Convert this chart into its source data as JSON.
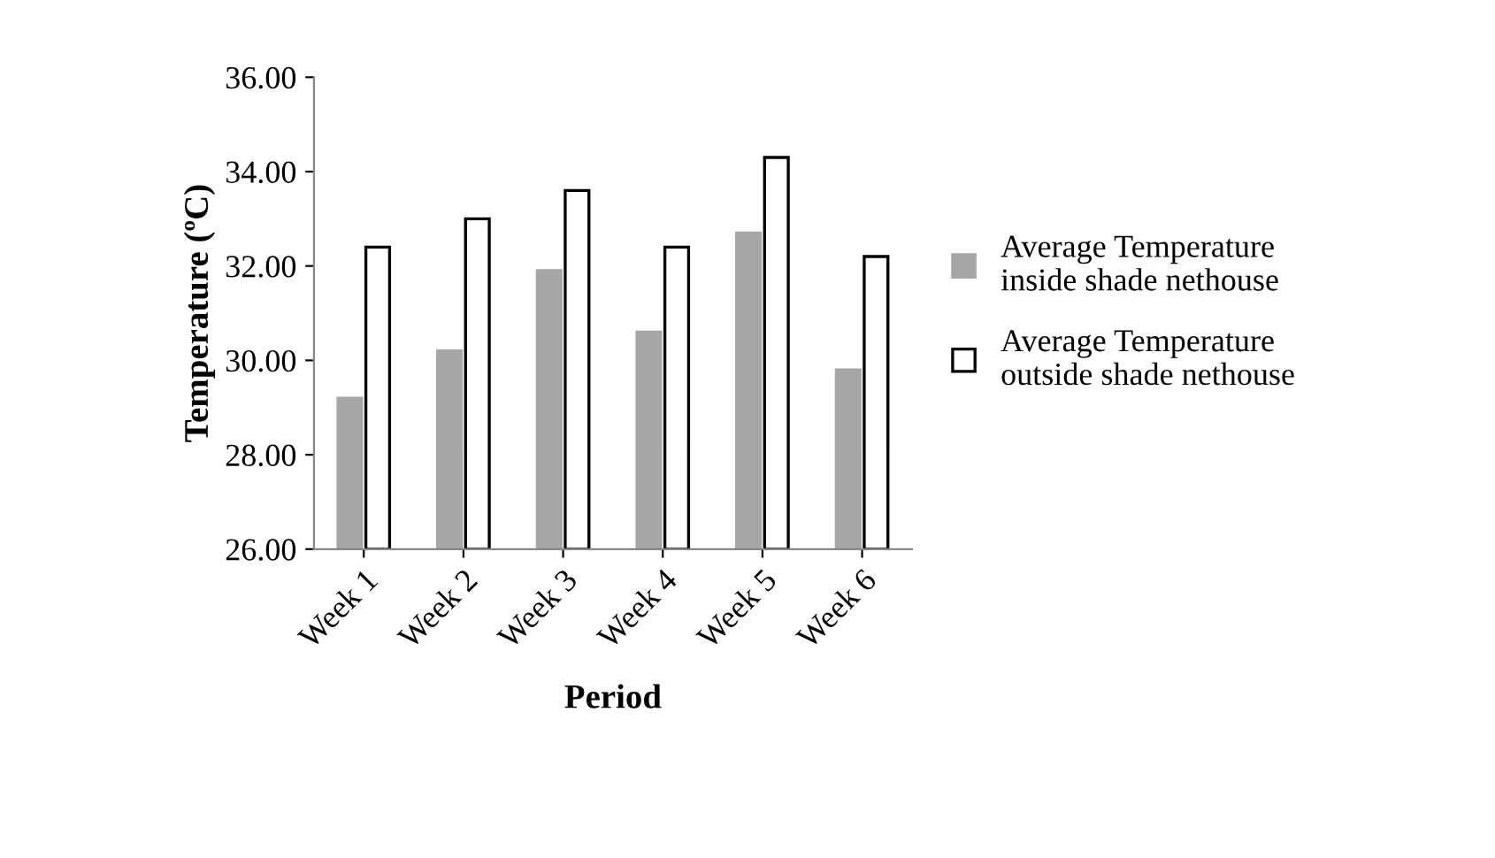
{
  "chart_data": {
    "type": "bar",
    "xlabel": "Period",
    "ylabel": "Temperature (ºC)",
    "categories": [
      "Week 1",
      "Week 2",
      "Week 3",
      "Week 4",
      "Week 5",
      "Week 6"
    ],
    "series": [
      {
        "name": "Average Temperature inside shade nethouse",
        "color": "#a6a6a6",
        "values": [
          29.2,
          30.2,
          31.9,
          30.6,
          32.7,
          29.8
        ]
      },
      {
        "name": "Average Temperature outside shade nethouse",
        "color": "#ffffff",
        "values": [
          32.4,
          33.0,
          33.6,
          32.4,
          34.3,
          32.2
        ]
      }
    ],
    "ylim": [
      26,
      36
    ],
    "yticks": [
      {
        "value": 26,
        "label": "26.00"
      },
      {
        "value": 28,
        "label": "28.00"
      },
      {
        "value": 30,
        "label": "30.00"
      },
      {
        "value": 32,
        "label": "32.00"
      },
      {
        "value": 34,
        "label": "34.00"
      },
      {
        "value": 36,
        "label": "36.00"
      }
    ],
    "grid": false,
    "legend": "right"
  }
}
